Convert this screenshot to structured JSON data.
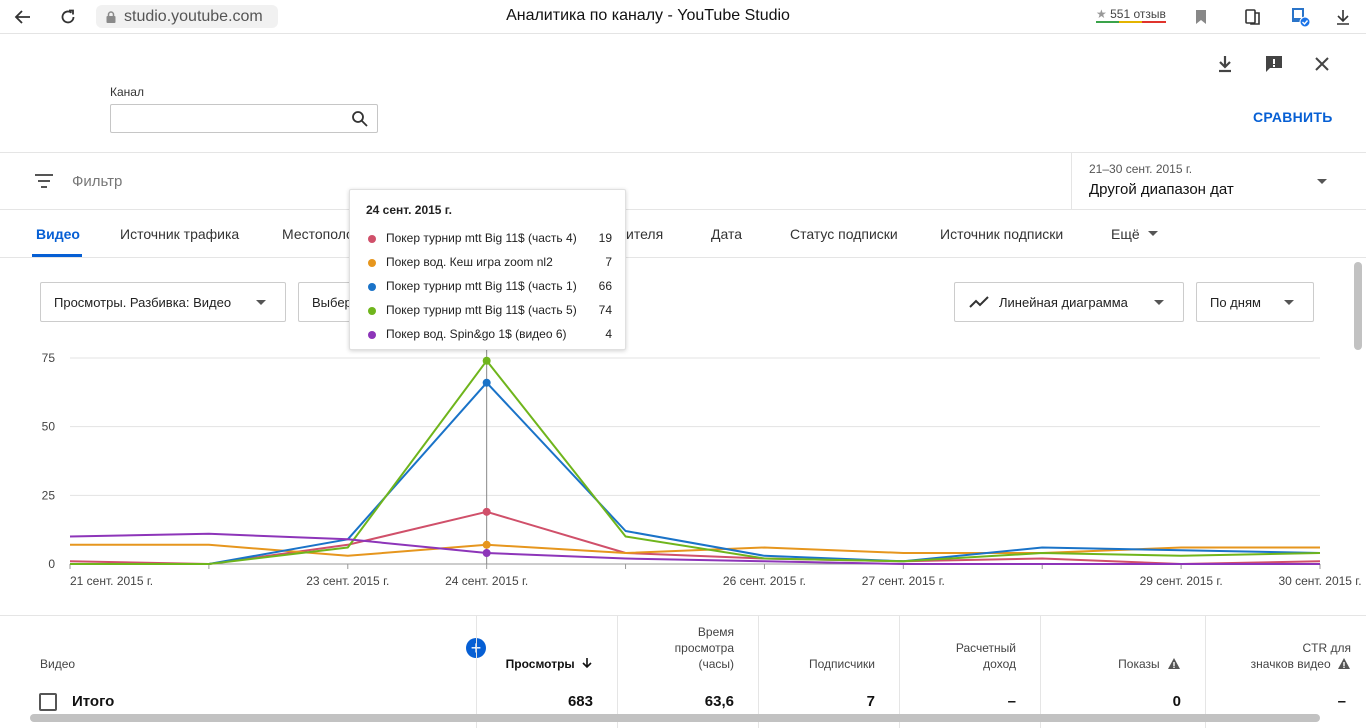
{
  "browser": {
    "url": "studio.youtube.com",
    "title": "Аналитика по каналу - YouTube Studio",
    "reviews": "551 отзыв",
    "star": "★"
  },
  "header": {
    "channel_label": "Канал",
    "channel_value": "",
    "compare": "СРАВНИТЬ"
  },
  "filter": {
    "placeholder": "Фильтр",
    "date_range_small": "21–30 сент. 2015 г.",
    "date_range": "Другой диапазон дат"
  },
  "tabs": [
    {
      "label": "Видео",
      "active": true
    },
    {
      "label": "Источник трафика"
    },
    {
      "label": "Местополо"
    },
    {
      "label": "ителя"
    },
    {
      "label": "Дата"
    },
    {
      "label": "Статус подписки"
    },
    {
      "label": "Источник подписки"
    },
    {
      "label": "Ещё"
    }
  ],
  "controls": {
    "metric": "Просмотры. Разбивка: Видео",
    "select": "Выбер",
    "chart_type": "Линейная диаграмма",
    "granularity": "По дням"
  },
  "tooltip": {
    "title": "24 сент. 2015 г.",
    "rows": [
      {
        "name": "Покер турнир mtt Big 11$ (часть 4)",
        "value": "19",
        "color": "#d0506a"
      },
      {
        "name": "Покер вод. Кеш игра zoom nl2",
        "value": "7",
        "color": "#e6961e"
      },
      {
        "name": "Покер турнир mtt Big 11$ (часть 1)",
        "value": "66",
        "color": "#1a73c8"
      },
      {
        "name": "Покер турнир mtt Big 11$ (часть 5)",
        "value": "74",
        "color": "#6fb51c"
      },
      {
        "name": "Покер вод. Spin&go 1$ (видео 6)",
        "value": "4",
        "color": "#8d35b9"
      }
    ]
  },
  "chart_data": {
    "type": "line",
    "x": [
      "21 сент. 2015 г.",
      "22 сент. 2015 г.",
      "23 сент. 2015 г.",
      "24 сент. 2015 г.",
      "25 сент. 2015 г.",
      "26 сент. 2015 г.",
      "27 сент. 2015 г.",
      "28 сент. 2015 г.",
      "29 сент. 2015 г.",
      "30 сент. 2015 г."
    ],
    "x_tick_labels": [
      "21 сент. 2015 г.",
      "23 сент. 2015 г.",
      "24 сент. 2015 г.",
      "26 сент. 2015 г.",
      "27 сент. 2015 г.",
      "29 сент. 2015 г.",
      "30 сент. 2015 г."
    ],
    "ylim": [
      0,
      75
    ],
    "yticks": [
      0,
      25,
      50,
      75
    ],
    "highlight_x": "24 сент. 2015 г.",
    "series": [
      {
        "name": "Покер турнир mtt Big 11$ (часть 4)",
        "color": "#d0506a",
        "values": [
          1,
          0,
          7,
          19,
          4,
          2,
          1,
          2,
          0,
          1
        ]
      },
      {
        "name": "Покер вод. Кеш игра zoom nl2",
        "color": "#e6961e",
        "values": [
          7,
          7,
          3,
          7,
          4,
          6,
          4,
          4,
          6,
          6
        ]
      },
      {
        "name": "Покер турнир mtt Big 11$ (часть 1)",
        "color": "#1a73c8",
        "values": [
          0,
          0,
          9,
          66,
          12,
          3,
          1,
          6,
          5,
          4
        ]
      },
      {
        "name": "Покер турнир mtt Big 11$ (часть 5)",
        "color": "#6fb51c",
        "values": [
          0,
          0,
          6,
          74,
          10,
          2,
          1,
          4,
          3,
          4
        ]
      },
      {
        "name": "Покер вод. Spin&go 1$ (видео 6)",
        "color": "#8d35b9",
        "values": [
          10,
          11,
          9,
          4,
          2,
          1,
          0,
          0,
          0,
          0
        ]
      }
    ]
  },
  "table": {
    "headers": {
      "video": "Видео",
      "views": "Просмотры",
      "watch_time": [
        "Время",
        "просмотра",
        "(часы)"
      ],
      "subscribers": "Подписчики",
      "revenue": [
        "Расчетный",
        "доход"
      ],
      "impressions": "Показы",
      "ctr": [
        "CTR для",
        "значков видео"
      ]
    },
    "total": {
      "label": "Итого",
      "views": "683",
      "watch_time": "63,6",
      "subscribers": "7",
      "revenue": "–",
      "impressions": "0",
      "ctr": "–"
    }
  }
}
